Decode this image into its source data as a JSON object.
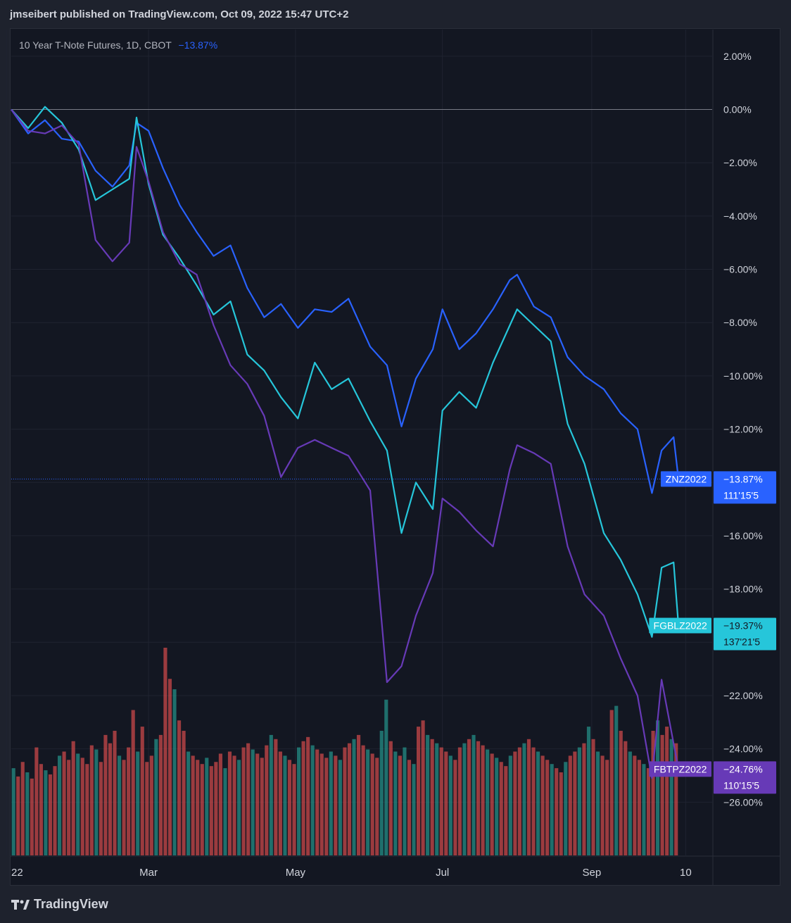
{
  "header": {
    "author": "jmseibert",
    "published_text": " published on TradingView.com, Oct 09, 2022 15:47 UTC+2"
  },
  "legend": {
    "title": "10 Year T-Note Futures, 1D, CBOT",
    "change": "−13.87%"
  },
  "footer": {
    "brand": "TradingView"
  },
  "chart_data": {
    "type": "line",
    "y_unit": "%",
    "ylim": [
      -28,
      3
    ],
    "y_ticks": [
      "2.00%",
      "0.00%",
      "−2.00%",
      "−4.00%",
      "−6.00%",
      "−8.00%",
      "−10.00%",
      "−12.00%",
      "−16.00%",
      "−18.00%",
      "−22.00%",
      "−24.00%",
      "−26.00%"
    ],
    "y_tick_values": [
      2,
      0,
      -2,
      -4,
      -6,
      -8,
      -10,
      -12,
      -16,
      -18,
      -22,
      -24,
      -26
    ],
    "x_ticks": [
      "22",
      "Mar",
      "May",
      "Jul",
      "Sep",
      "10"
    ],
    "x_tick_dates": [
      "2022-01-01",
      "2022-03-01",
      "2022-05-01",
      "2022-07-01",
      "2022-09-01",
      "2022-10-10"
    ],
    "x_range": [
      "2022-01-03",
      "2022-10-21"
    ],
    "series": [
      {
        "symbol": "ZNZ2022",
        "color": "#2962ff",
        "last_pct": "−13.87%",
        "last_price": "111'15'5",
        "values": [
          [
            "2022-01-03",
            0
          ],
          [
            "2022-01-10",
            -0.9
          ],
          [
            "2022-01-17",
            -0.4
          ],
          [
            "2022-01-24",
            -1.1
          ],
          [
            "2022-01-31",
            -1.2
          ],
          [
            "2022-02-07",
            -2.3
          ],
          [
            "2022-02-14",
            -2.9
          ],
          [
            "2022-02-21",
            -2.1
          ],
          [
            "2022-02-24",
            -0.5
          ],
          [
            "2022-03-01",
            -0.8
          ],
          [
            "2022-03-07",
            -2.2
          ],
          [
            "2022-03-14",
            -3.6
          ],
          [
            "2022-03-21",
            -4.6
          ],
          [
            "2022-03-28",
            -5.5
          ],
          [
            "2022-04-04",
            -5.1
          ],
          [
            "2022-04-11",
            -6.7
          ],
          [
            "2022-04-18",
            -7.8
          ],
          [
            "2022-04-25",
            -7.3
          ],
          [
            "2022-05-02",
            -8.2
          ],
          [
            "2022-05-09",
            -7.5
          ],
          [
            "2022-05-16",
            -7.6
          ],
          [
            "2022-05-23",
            -7.1
          ],
          [
            "2022-06-01",
            -8.9
          ],
          [
            "2022-06-08",
            -9.6
          ],
          [
            "2022-06-14",
            -11.9
          ],
          [
            "2022-06-20",
            -10.1
          ],
          [
            "2022-06-27",
            -9.0
          ],
          [
            "2022-07-01",
            -7.5
          ],
          [
            "2022-07-08",
            -9.0
          ],
          [
            "2022-07-15",
            -8.4
          ],
          [
            "2022-07-22",
            -7.5
          ],
          [
            "2022-07-29",
            -6.4
          ],
          [
            "2022-08-01",
            -6.2
          ],
          [
            "2022-08-08",
            -7.4
          ],
          [
            "2022-08-15",
            -7.8
          ],
          [
            "2022-08-22",
            -9.3
          ],
          [
            "2022-08-29",
            -10.0
          ],
          [
            "2022-09-06",
            -10.5
          ],
          [
            "2022-09-13",
            -11.4
          ],
          [
            "2022-09-20",
            -12.0
          ],
          [
            "2022-09-26",
            -14.4
          ],
          [
            "2022-09-30",
            -12.8
          ],
          [
            "2022-10-05",
            -12.3
          ],
          [
            "2022-10-07",
            -13.87
          ]
        ]
      },
      {
        "symbol": "FGBLZ2022",
        "color": "#26c6da",
        "last_pct": "−19.37%",
        "last_price": "137'21'5",
        "values": [
          [
            "2022-01-03",
            0
          ],
          [
            "2022-01-10",
            -0.7
          ],
          [
            "2022-01-17",
            0.1
          ],
          [
            "2022-01-24",
            -0.5
          ],
          [
            "2022-01-31",
            -1.5
          ],
          [
            "2022-02-07",
            -3.4
          ],
          [
            "2022-02-14",
            -3.0
          ],
          [
            "2022-02-21",
            -2.6
          ],
          [
            "2022-02-24",
            -0.3
          ],
          [
            "2022-03-01",
            -2.8
          ],
          [
            "2022-03-07",
            -4.7
          ],
          [
            "2022-03-14",
            -5.6
          ],
          [
            "2022-03-21",
            -6.6
          ],
          [
            "2022-03-28",
            -7.7
          ],
          [
            "2022-04-04",
            -7.2
          ],
          [
            "2022-04-11",
            -9.2
          ],
          [
            "2022-04-18",
            -9.8
          ],
          [
            "2022-04-25",
            -10.8
          ],
          [
            "2022-05-02",
            -11.6
          ],
          [
            "2022-05-09",
            -9.5
          ],
          [
            "2022-05-16",
            -10.5
          ],
          [
            "2022-05-23",
            -10.1
          ],
          [
            "2022-06-01",
            -11.7
          ],
          [
            "2022-06-08",
            -12.8
          ],
          [
            "2022-06-14",
            -15.9
          ],
          [
            "2022-06-20",
            -14.0
          ],
          [
            "2022-06-27",
            -15.0
          ],
          [
            "2022-07-01",
            -11.3
          ],
          [
            "2022-07-08",
            -10.6
          ],
          [
            "2022-07-15",
            -11.2
          ],
          [
            "2022-07-22",
            -9.5
          ],
          [
            "2022-07-29",
            -8.1
          ],
          [
            "2022-08-01",
            -7.5
          ],
          [
            "2022-08-08",
            -8.1
          ],
          [
            "2022-08-15",
            -8.7
          ],
          [
            "2022-08-22",
            -11.8
          ],
          [
            "2022-08-29",
            -13.3
          ],
          [
            "2022-09-06",
            -15.9
          ],
          [
            "2022-09-13",
            -16.9
          ],
          [
            "2022-09-20",
            -18.2
          ],
          [
            "2022-09-26",
            -19.8
          ],
          [
            "2022-09-30",
            -17.2
          ],
          [
            "2022-10-05",
            -17.0
          ],
          [
            "2022-10-07",
            -19.37
          ]
        ]
      },
      {
        "symbol": "FBTPZ2022",
        "color": "#673ab7",
        "last_pct": "−24.76%",
        "last_price": "110'15'5",
        "values": [
          [
            "2022-01-03",
            0
          ],
          [
            "2022-01-10",
            -0.8
          ],
          [
            "2022-01-17",
            -0.9
          ],
          [
            "2022-01-24",
            -0.6
          ],
          [
            "2022-01-31",
            -1.3
          ],
          [
            "2022-02-07",
            -4.9
          ],
          [
            "2022-02-14",
            -5.7
          ],
          [
            "2022-02-21",
            -5.0
          ],
          [
            "2022-02-24",
            -1.4
          ],
          [
            "2022-03-01",
            -2.7
          ],
          [
            "2022-03-07",
            -4.6
          ],
          [
            "2022-03-14",
            -5.8
          ],
          [
            "2022-03-21",
            -6.2
          ],
          [
            "2022-03-28",
            -8.1
          ],
          [
            "2022-04-04",
            -9.6
          ],
          [
            "2022-04-11",
            -10.3
          ],
          [
            "2022-04-18",
            -11.5
          ],
          [
            "2022-04-25",
            -13.8
          ],
          [
            "2022-05-02",
            -12.7
          ],
          [
            "2022-05-09",
            -12.4
          ],
          [
            "2022-05-16",
            -12.7
          ],
          [
            "2022-05-23",
            -13.0
          ],
          [
            "2022-06-01",
            -14.3
          ],
          [
            "2022-06-08",
            -21.5
          ],
          [
            "2022-06-14",
            -20.9
          ],
          [
            "2022-06-20",
            -19.0
          ],
          [
            "2022-06-27",
            -17.4
          ],
          [
            "2022-07-01",
            -14.6
          ],
          [
            "2022-07-08",
            -15.1
          ],
          [
            "2022-07-15",
            -15.8
          ],
          [
            "2022-07-22",
            -16.4
          ],
          [
            "2022-07-29",
            -13.5
          ],
          [
            "2022-08-01",
            -12.6
          ],
          [
            "2022-08-08",
            -12.9
          ],
          [
            "2022-08-15",
            -13.3
          ],
          [
            "2022-08-22",
            -16.4
          ],
          [
            "2022-08-29",
            -18.2
          ],
          [
            "2022-09-06",
            -19.0
          ],
          [
            "2022-09-13",
            -20.6
          ],
          [
            "2022-09-20",
            -22.0
          ],
          [
            "2022-09-26",
            -25.1
          ],
          [
            "2022-09-30",
            -21.4
          ],
          [
            "2022-10-05",
            -23.8
          ],
          [
            "2022-10-07",
            -24.76
          ]
        ]
      }
    ],
    "volume": {
      "up_color": "#26a69a",
      "down_color": "#ef5350",
      "max": 100,
      "bars": [
        [
          42,
          1
        ],
        [
          38,
          0
        ],
        [
          45,
          0
        ],
        [
          40,
          1
        ],
        [
          37,
          0
        ],
        [
          52,
          0
        ],
        [
          44,
          0
        ],
        [
          41,
          1
        ],
        [
          39,
          0
        ],
        [
          43,
          0
        ],
        [
          48,
          1
        ],
        [
          50,
          0
        ],
        [
          46,
          0
        ],
        [
          55,
          0
        ],
        [
          49,
          1
        ],
        [
          47,
          0
        ],
        [
          44,
          0
        ],
        [
          53,
          0
        ],
        [
          51,
          1
        ],
        [
          45,
          0
        ],
        [
          58,
          0
        ],
        [
          54,
          0
        ],
        [
          60,
          0
        ],
        [
          48,
          1
        ],
        [
          46,
          0
        ],
        [
          52,
          0
        ],
        [
          70,
          0
        ],
        [
          50,
          1
        ],
        [
          62,
          0
        ],
        [
          45,
          0
        ],
        [
          48,
          0
        ],
        [
          56,
          1
        ],
        [
          58,
          0
        ],
        [
          100,
          0
        ],
        [
          85,
          0
        ],
        [
          80,
          1
        ],
        [
          65,
          0
        ],
        [
          60,
          0
        ],
        [
          50,
          1
        ],
        [
          48,
          0
        ],
        [
          46,
          0
        ],
        [
          44,
          0
        ],
        [
          47,
          1
        ],
        [
          43,
          0
        ],
        [
          45,
          0
        ],
        [
          49,
          0
        ],
        [
          42,
          1
        ],
        [
          50,
          0
        ],
        [
          48,
          0
        ],
        [
          46,
          1
        ],
        [
          52,
          0
        ],
        [
          54,
          0
        ],
        [
          51,
          1
        ],
        [
          49,
          0
        ],
        [
          47,
          0
        ],
        [
          53,
          0
        ],
        [
          58,
          1
        ],
        [
          56,
          0
        ],
        [
          50,
          0
        ],
        [
          48,
          1
        ],
        [
          46,
          0
        ],
        [
          44,
          0
        ],
        [
          52,
          1
        ],
        [
          55,
          0
        ],
        [
          57,
          0
        ],
        [
          53,
          1
        ],
        [
          51,
          0
        ],
        [
          49,
          0
        ],
        [
          47,
          0
        ],
        [
          50,
          1
        ],
        [
          48,
          0
        ],
        [
          46,
          1
        ],
        [
          52,
          0
        ],
        [
          54,
          0
        ],
        [
          56,
          1
        ],
        [
          58,
          0
        ],
        [
          53,
          0
        ],
        [
          51,
          1
        ],
        [
          49,
          0
        ],
        [
          47,
          0
        ],
        [
          60,
          1
        ],
        [
          75,
          1
        ],
        [
          55,
          0
        ],
        [
          50,
          1
        ],
        [
          48,
          0
        ],
        [
          52,
          1
        ],
        [
          46,
          0
        ],
        [
          44,
          1
        ],
        [
          62,
          0
        ],
        [
          65,
          0
        ],
        [
          58,
          1
        ],
        [
          56,
          0
        ],
        [
          54,
          1
        ],
        [
          52,
          0
        ],
        [
          50,
          0
        ],
        [
          48,
          1
        ],
        [
          46,
          0
        ],
        [
          52,
          0
        ],
        [
          54,
          1
        ],
        [
          56,
          0
        ],
        [
          58,
          1
        ],
        [
          55,
          0
        ],
        [
          53,
          0
        ],
        [
          51,
          1
        ],
        [
          49,
          0
        ],
        [
          47,
          1
        ],
        [
          45,
          0
        ],
        [
          43,
          0
        ],
        [
          48,
          1
        ],
        [
          50,
          0
        ],
        [
          52,
          0
        ],
        [
          54,
          1
        ],
        [
          56,
          0
        ],
        [
          52,
          0
        ],
        [
          50,
          1
        ],
        [
          48,
          0
        ],
        [
          46,
          0
        ],
        [
          44,
          1
        ],
        [
          42,
          0
        ],
        [
          40,
          0
        ],
        [
          45,
          1
        ],
        [
          48,
          0
        ],
        [
          50,
          0
        ],
        [
          52,
          1
        ],
        [
          54,
          0
        ],
        [
          62,
          1
        ],
        [
          56,
          0
        ],
        [
          50,
          1
        ],
        [
          48,
          0
        ],
        [
          46,
          0
        ],
        [
          70,
          0
        ],
        [
          72,
          1
        ],
        [
          60,
          0
        ],
        [
          55,
          0
        ],
        [
          50,
          1
        ],
        [
          48,
          0
        ],
        [
          46,
          0
        ],
        [
          44,
          1
        ],
        [
          42,
          0
        ],
        [
          60,
          0
        ],
        [
          65,
          1
        ],
        [
          58,
          0
        ],
        [
          62,
          0
        ],
        [
          56,
          1
        ],
        [
          54,
          0
        ]
      ]
    }
  }
}
